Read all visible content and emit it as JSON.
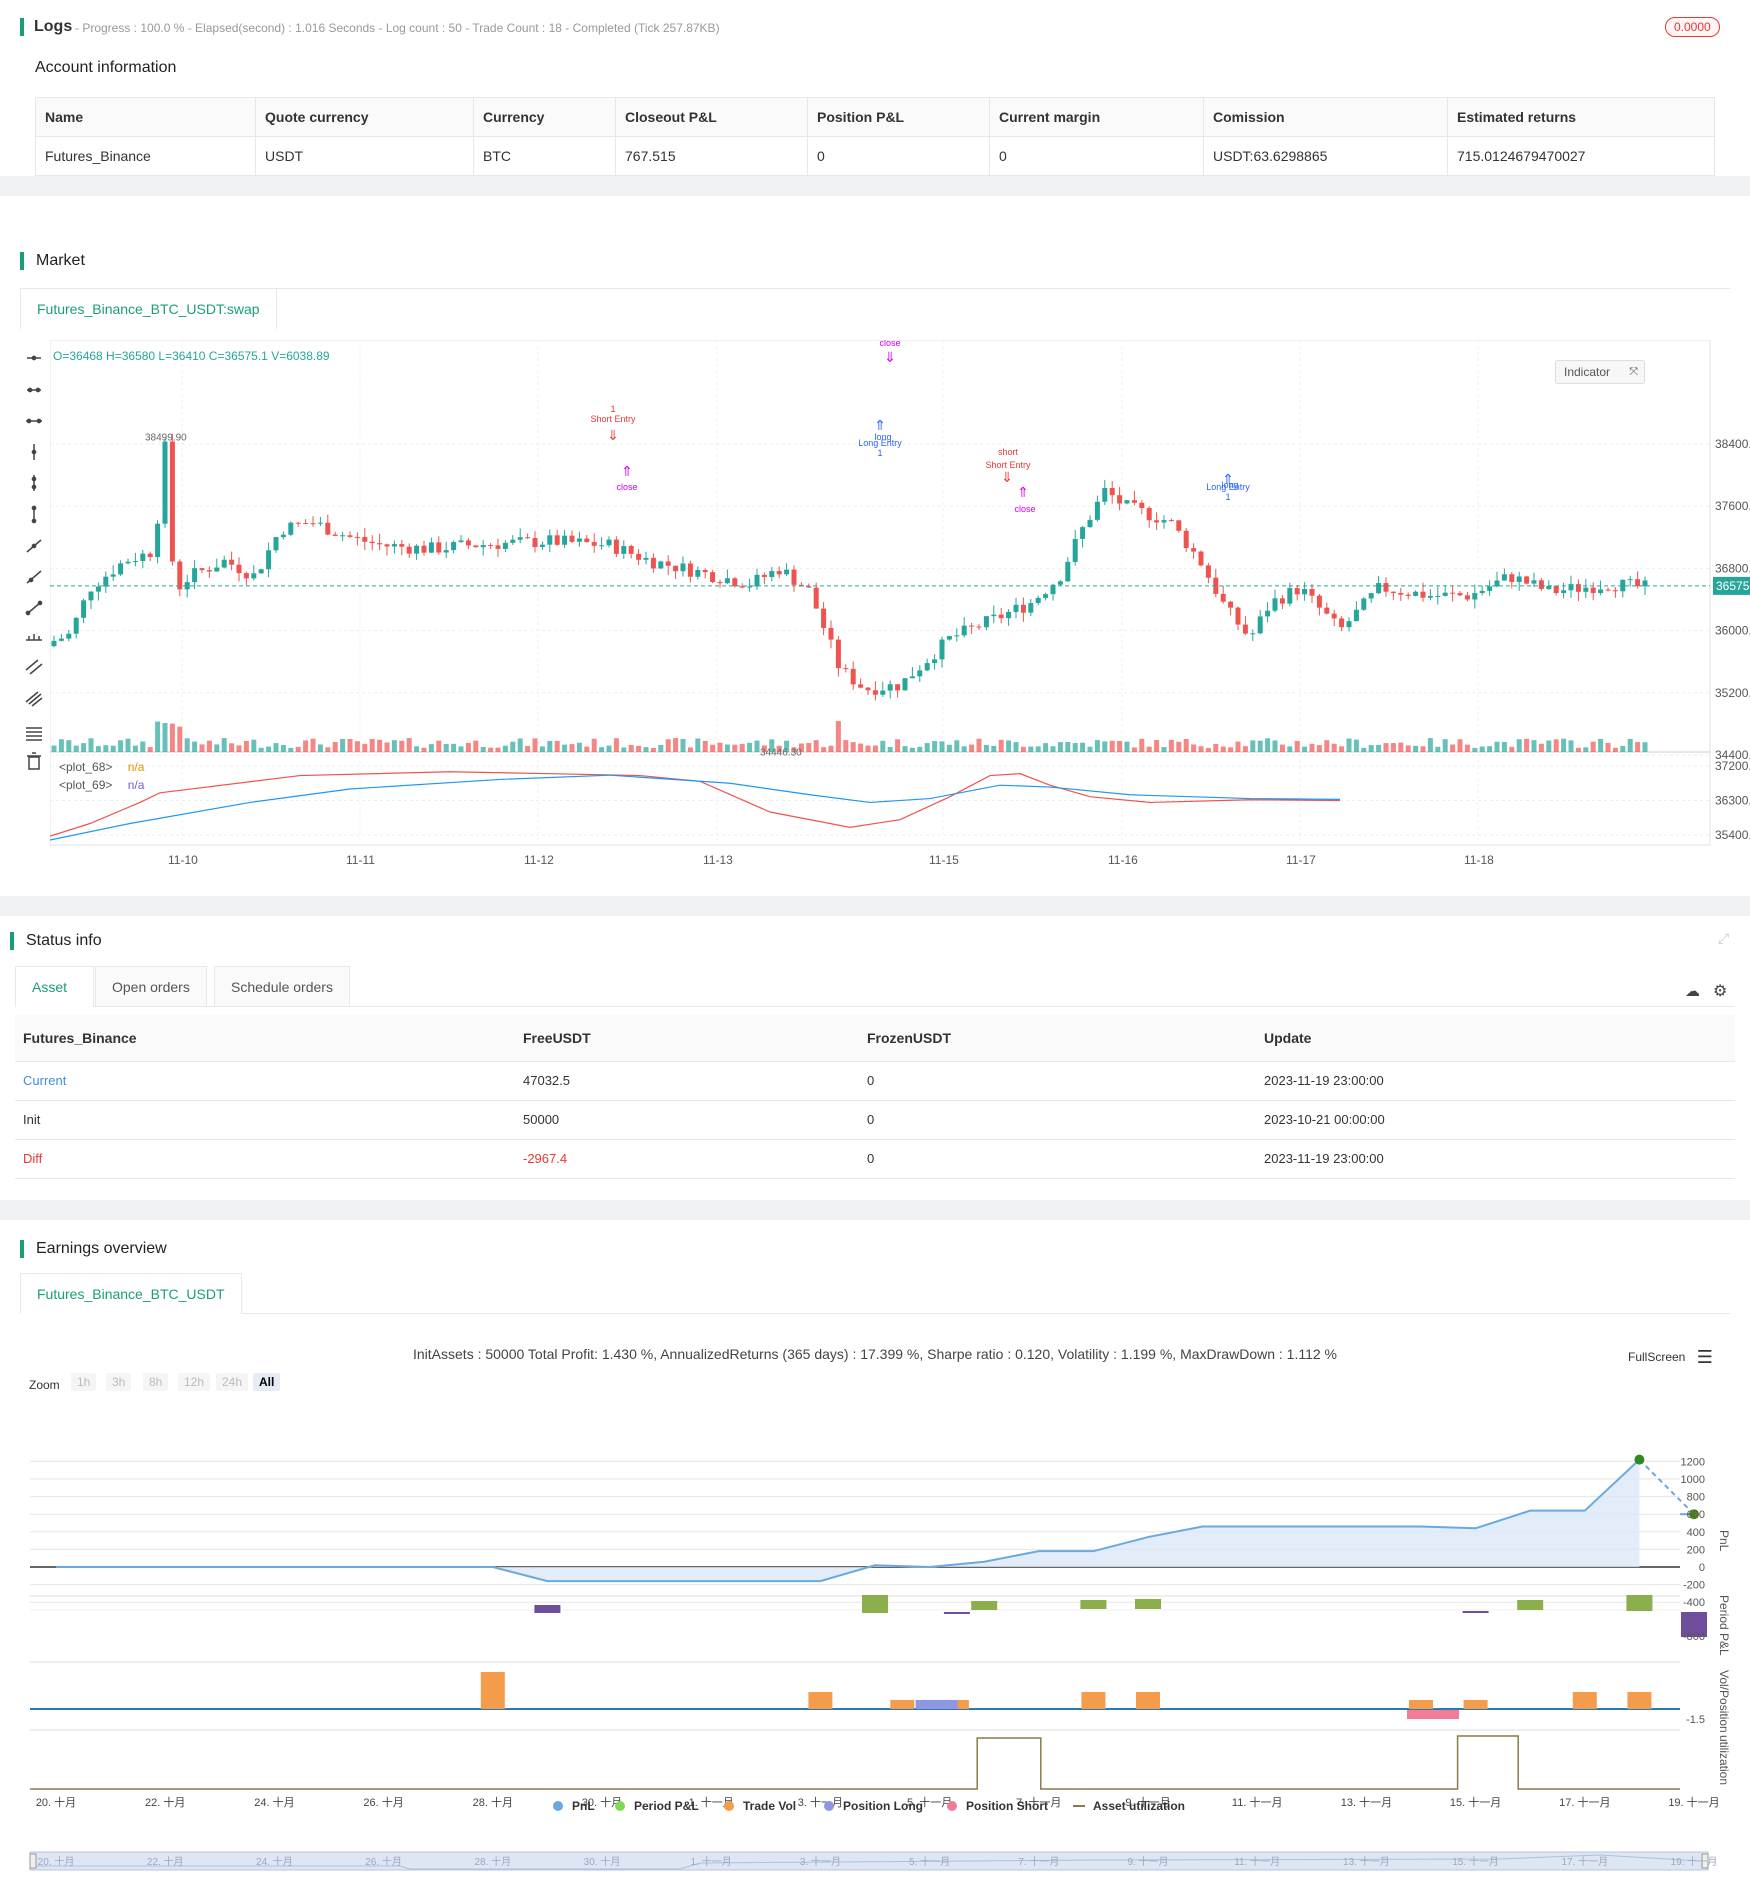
{
  "logs": {
    "title": "Logs",
    "summary": "- Progress : 100.0 % - Elapsed(second) : 1.016  Seconds - Log count : 50 - Trade Count : 18 - Completed (Tick 257.87KB)",
    "badge": "0.0000"
  },
  "account": {
    "title": "Account information",
    "headers": [
      "Name",
      "Quote currency",
      "Currency",
      "Closeout P&L",
      "Position P&L",
      "Current margin",
      "Comission",
      "Estimated returns"
    ],
    "row": [
      "Futures_Binance",
      "USDT",
      "BTC",
      "767.515",
      "0",
      "0",
      "USDT:63.6298865",
      "715.0124679470027"
    ]
  },
  "market": {
    "title": "Market",
    "tab": "Futures_Binance_BTC_USDT:swap",
    "ohlc": "O=36468 H=36580 L=36410 C=36575.1 V=6038.89",
    "indicator_button": "Indicator",
    "plot68_label": "<plot_68>",
    "plot68_value": "n/a",
    "plot69_label": "<plot_69>",
    "plot69_value": "n/a",
    "price_ticks": [
      "38400.00",
      "37600.00",
      "36800.00",
      "36000.00",
      "35200.00",
      "34400.00"
    ],
    "ind_ticks": [
      "37200.00",
      "36300.00",
      "35400.00"
    ],
    "date_ticks": [
      "11-10",
      "11-11",
      "11-12",
      "11-13",
      "11-15",
      "11-16",
      "11-17",
      "11-18"
    ],
    "current_price": "36575.10",
    "high_label": "38499.90",
    "low_label": "34446.30",
    "markers": {
      "close1": "close",
      "close2": "close",
      "close3": "close",
      "short_entry": "Short Entry",
      "short_entry_qty": "1",
      "short1": "short",
      "short_entry2": "Short Entry",
      "long1": "long",
      "long_entry1": "Long Entry",
      "long_entry1_qty": "1",
      "long2": "long",
      "long_entry2": "Long Entry",
      "long_entry2_qty": "1"
    }
  },
  "status": {
    "title": "Status info",
    "tabs": [
      "Asset",
      "Open orders",
      "Schedule orders"
    ],
    "headers": [
      "Futures_Binance",
      "FreeUSDT",
      "FrozenUSDT",
      "Update"
    ],
    "rows": [
      {
        "name": "Current",
        "free": "47032.5",
        "frozen": "0",
        "update": "2023-11-19 23:00:00"
      },
      {
        "name": "Init",
        "free": "50000",
        "frozen": "0",
        "update": "2023-10-21 00:00:00"
      },
      {
        "name": "Diff",
        "free": "-2967.4",
        "frozen": "0",
        "update": "2023-11-19 23:00:00"
      }
    ]
  },
  "earnings": {
    "title": "Earnings overview",
    "tab": "Futures_Binance_BTC_USDT",
    "summary": "InitAssets : 50000 Total Profit: 1.430 %, AnnualizedReturns (365 days) : 17.399 %, Sharpe ratio : 0.120, Volatility : 1.199 %, MaxDrawDown : 1.112 %",
    "fullscreen": "FullScreen",
    "zoom_label": "Zoom",
    "zoom_options": [
      "1h",
      "3h",
      "8h",
      "12h",
      "24h",
      "All"
    ],
    "pnl_ticks": [
      "1200",
      "1000",
      "800",
      "600",
      "400",
      "200",
      "0",
      "-200",
      "-400"
    ],
    "axis_titles": [
      "PnL",
      "Period P&L",
      "Vol/Position",
      "utilization"
    ],
    "period_tick": "-800",
    "vol_tick": "-1.5",
    "x_ticks": [
      "20. 十月",
      "22. 十月",
      "24. 十月",
      "26. 十月",
      "28. 十月",
      "30. 十月",
      "1. 十一月",
      "3. 十一月",
      "5. 十一月",
      "7. 十一月",
      "9. 十一月",
      "11. 十一月",
      "13. 十一月",
      "15. 十一月",
      "17. 十一月",
      "19. 十一月"
    ],
    "legend": [
      "PnL",
      "Period P&L",
      "Trade Vol",
      "Position Long",
      "Position Short",
      "Asset utilization"
    ]
  },
  "colors": {
    "accent": "#1a9e7a",
    "up": "#26a69a",
    "down": "#ef5350",
    "long": "#2962ff",
    "short": "#e53935",
    "close": "#d500f9"
  }
}
